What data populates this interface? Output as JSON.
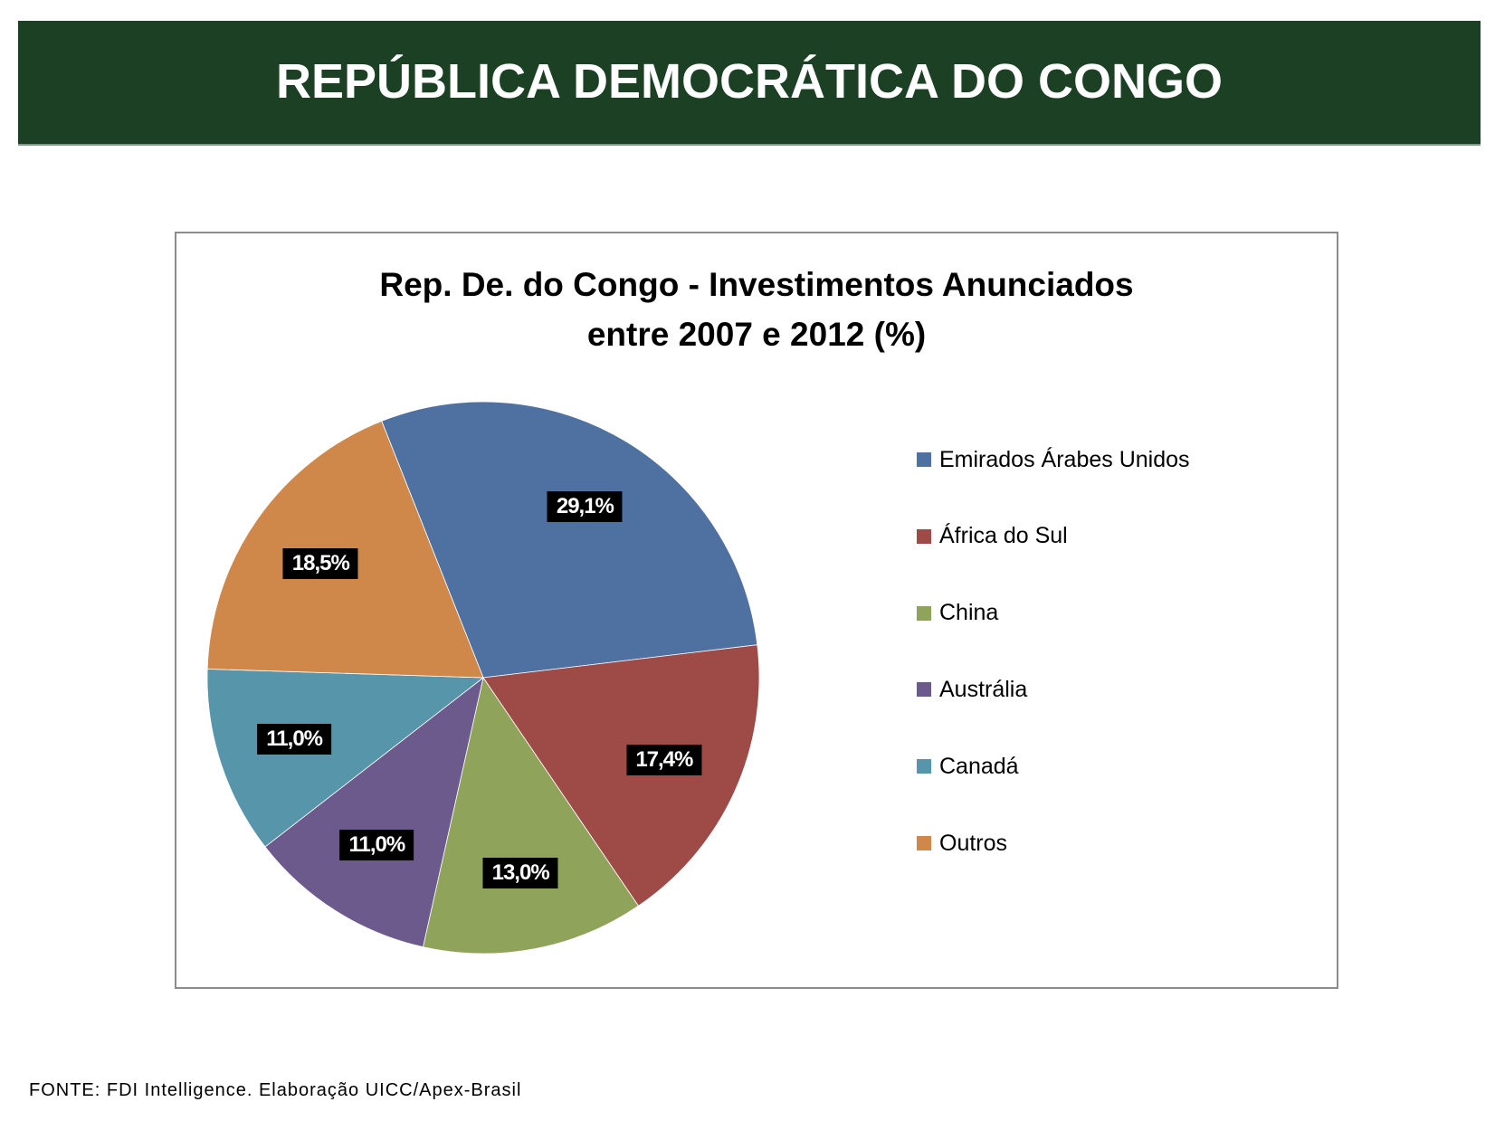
{
  "header": {
    "title": "REPÚBLICA DEMOCRÁTICA DO CONGO"
  },
  "chart_data": {
    "type": "pie",
    "title": "Rep. De. do Congo - Investimentos Anunciados",
    "subtitle": "entre  2007 e 2012 (%)",
    "categories": [
      "Emirados  Árabes Unidos",
      "África do Sul",
      "China",
      "Austrália",
      "Canadá",
      "Outros"
    ],
    "values": [
      29.1,
      17.4,
      13.0,
      11.0,
      11.0,
      18.5
    ],
    "data_labels": [
      "29,1%",
      "17,4%",
      "13,0%",
      "11,0%",
      "11,0%",
      "18,5%"
    ],
    "colors": [
      "#4f71a1",
      "#9e4b47",
      "#8fa35a",
      "#6c5a8c",
      "#5795aa",
      "#cf884a"
    ],
    "legend_position": "right"
  },
  "footer": {
    "source": "FONTE: FDI Intelligence. Elaboração UICC/Apex-Brasil"
  }
}
